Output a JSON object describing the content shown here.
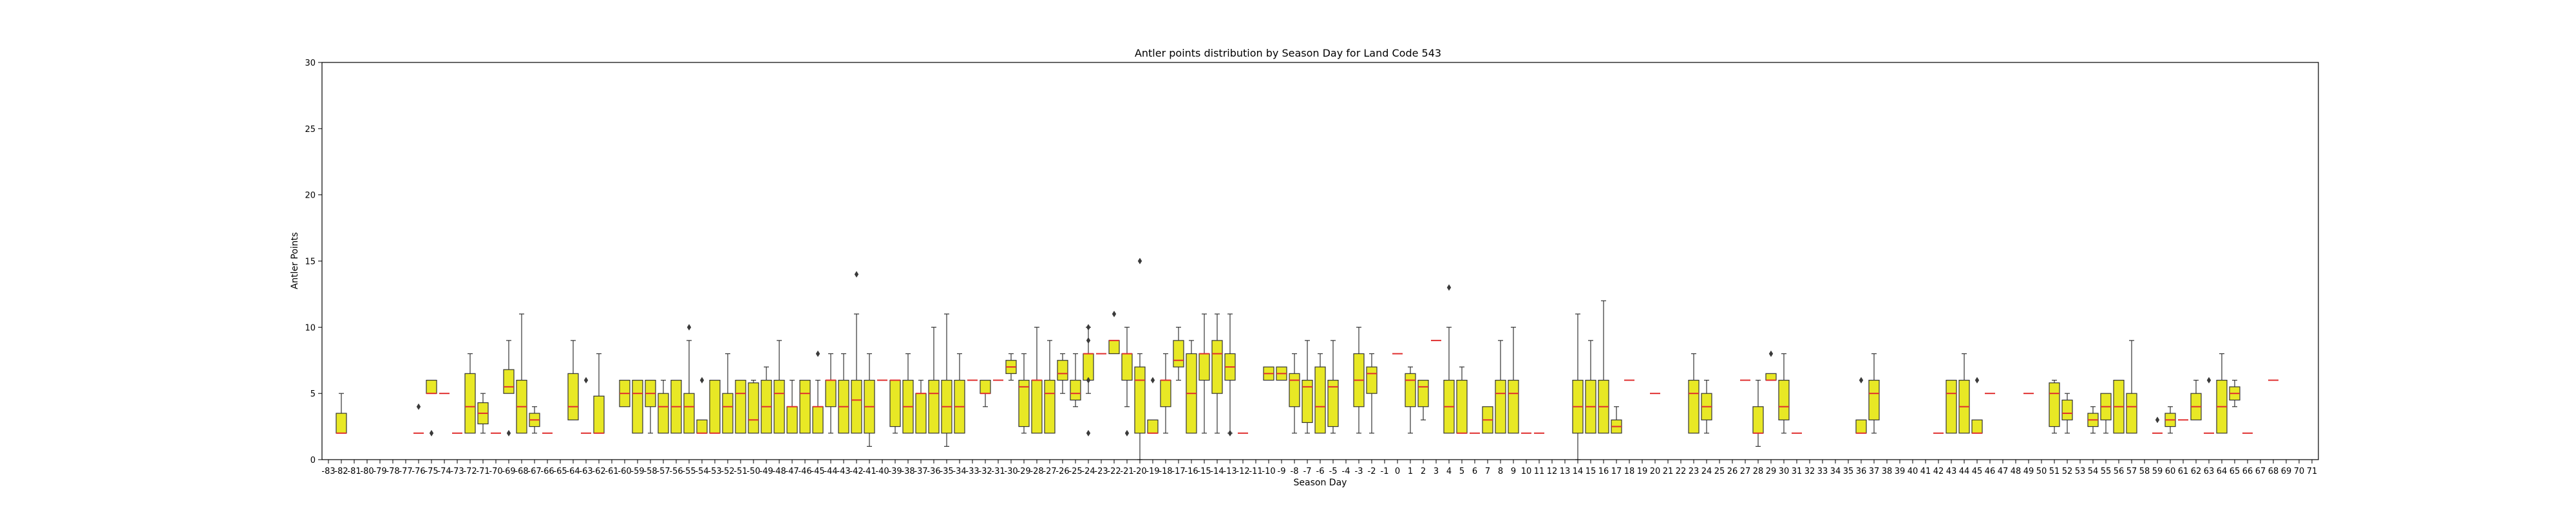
{
  "chart_data": {
    "type": "box",
    "title": "Antler points distribution by Season Day for Land Code 543",
    "xlabel": "Season Day",
    "ylabel": "Antler Points",
    "ylim": [
      0,
      30
    ],
    "yticks": [
      0,
      5,
      10,
      15,
      20,
      25,
      30
    ],
    "grid": false,
    "colors": {
      "box_fill": "#e8e825",
      "median": "#e03030",
      "edge": "#333333"
    },
    "categories": [
      -83,
      -82,
      -81,
      -80,
      -79,
      -78,
      -77,
      -76,
      -75,
      -74,
      -73,
      -72,
      -71,
      -70,
      -69,
      -68,
      -67,
      -66,
      -65,
      -64,
      -63,
      -62,
      -61,
      -60,
      -59,
      -58,
      -57,
      -56,
      -55,
      -54,
      -53,
      -52,
      -51,
      -50,
      -49,
      -48,
      -47,
      -46,
      -45,
      -44,
      -43,
      -42,
      -41,
      -40,
      -39,
      -38,
      -37,
      -36,
      -35,
      -34,
      -33,
      -32,
      -31,
      -30,
      -29,
      -28,
      -27,
      -26,
      -25,
      -24,
      -23,
      -22,
      -21,
      -20,
      -19,
      -18,
      -17,
      -16,
      -15,
      -14,
      -13,
      -12,
      -11,
      -10,
      -9,
      -8,
      -7,
      -6,
      -5,
      -4,
      -3,
      -2,
      -1,
      0,
      1,
      2,
      3,
      4,
      5,
      6,
      7,
      8,
      9,
      10,
      11,
      12,
      13,
      14,
      15,
      16,
      17,
      18,
      19,
      20,
      21,
      22,
      23,
      24,
      25,
      26,
      27,
      28,
      29,
      30,
      31,
      32,
      33,
      34,
      35,
      36,
      37,
      38,
      39,
      40,
      41,
      42,
      43,
      44,
      45,
      46,
      47,
      48,
      49,
      50,
      51,
      52,
      53,
      54,
      55,
      56,
      57,
      58,
      59,
      60,
      61,
      62,
      63,
      64,
      65,
      66,
      67,
      68,
      69,
      70,
      71
    ],
    "boxes": [
      {
        "x": -82,
        "lo": 2,
        "q1": 2,
        "med": 2,
        "q3": 3.5,
        "hi": 5,
        "fl": []
      },
      {
        "x": -76,
        "lo": 2,
        "q1": 2,
        "med": 2,
        "q3": 2,
        "hi": 2,
        "fl": [
          4
        ]
      },
      {
        "x": -75,
        "lo": 5,
        "q1": 5,
        "med": 5,
        "q3": 6,
        "hi": 6,
        "fl": [
          2
        ]
      },
      {
        "x": -74,
        "lo": 5,
        "q1": 5,
        "med": 5,
        "q3": 5,
        "hi": 5,
        "fl": []
      },
      {
        "x": -73,
        "lo": 2,
        "q1": 2,
        "med": 2,
        "q3": 2,
        "hi": 2,
        "fl": []
      },
      {
        "x": -72,
        "lo": 2,
        "q1": 2,
        "med": 4,
        "q3": 6.5,
        "hi": 8,
        "fl": []
      },
      {
        "x": -71,
        "lo": 2,
        "q1": 2.7,
        "med": 3.5,
        "q3": 4.3,
        "hi": 5,
        "fl": []
      },
      {
        "x": -70,
        "lo": 2,
        "q1": 2,
        "med": 2,
        "q3": 2,
        "hi": 2,
        "fl": []
      },
      {
        "x": -69,
        "lo": 5,
        "q1": 5,
        "med": 5.5,
        "q3": 6.8,
        "hi": 9,
        "fl": [
          2
        ]
      },
      {
        "x": -68,
        "lo": 2,
        "q1": 2,
        "med": 4,
        "q3": 6,
        "hi": 11,
        "fl": []
      },
      {
        "x": -67,
        "lo": 2,
        "q1": 2.5,
        "med": 3,
        "q3": 3.5,
        "hi": 4,
        "fl": []
      },
      {
        "x": -66,
        "lo": 2,
        "q1": 2,
        "med": 2,
        "q3": 2,
        "hi": 2,
        "fl": []
      },
      {
        "x": -64,
        "lo": 3,
        "q1": 3,
        "med": 4,
        "q3": 6.5,
        "hi": 9,
        "fl": []
      },
      {
        "x": -63,
        "lo": 2,
        "q1": 2,
        "med": 2,
        "q3": 2,
        "hi": 2,
        "fl": [
          6
        ]
      },
      {
        "x": -62,
        "lo": 2,
        "q1": 2,
        "med": 2,
        "q3": 4.8,
        "hi": 8,
        "fl": []
      },
      {
        "x": -60,
        "lo": 4,
        "q1": 4,
        "med": 5,
        "q3": 6,
        "hi": 6,
        "fl": []
      },
      {
        "x": -59,
        "lo": 2,
        "q1": 2,
        "med": 5,
        "q3": 6,
        "hi": 6,
        "fl": []
      },
      {
        "x": -58,
        "lo": 2,
        "q1": 4,
        "med": 5,
        "q3": 6,
        "hi": 6,
        "fl": []
      },
      {
        "x": -57,
        "lo": 2,
        "q1": 2,
        "med": 4,
        "q3": 5,
        "hi": 6,
        "fl": []
      },
      {
        "x": -56,
        "lo": 2,
        "q1": 2,
        "med": 4,
        "q3": 6,
        "hi": 6,
        "fl": []
      },
      {
        "x": -55,
        "lo": 2,
        "q1": 2,
        "med": 4,
        "q3": 5,
        "hi": 9,
        "fl": [
          10
        ]
      },
      {
        "x": -54,
        "lo": 2,
        "q1": 2,
        "med": 2,
        "q3": 3,
        "hi": 3,
        "fl": [
          6
        ]
      },
      {
        "x": -53,
        "lo": 2,
        "q1": 2,
        "med": 2,
        "q3": 6,
        "hi": 6,
        "fl": []
      },
      {
        "x": -52,
        "lo": 2,
        "q1": 2,
        "med": 4,
        "q3": 5,
        "hi": 8,
        "fl": []
      },
      {
        "x": -51,
        "lo": 2,
        "q1": 2,
        "med": 5,
        "q3": 6,
        "hi": 6,
        "fl": []
      },
      {
        "x": -50,
        "lo": 2,
        "q1": 2,
        "med": 3,
        "q3": 5.8,
        "hi": 6,
        "fl": []
      },
      {
        "x": -49,
        "lo": 2,
        "q1": 2,
        "med": 4,
        "q3": 6,
        "hi": 7,
        "fl": []
      },
      {
        "x": -48,
        "lo": 2,
        "q1": 2,
        "med": 5,
        "q3": 6,
        "hi": 9,
        "fl": []
      },
      {
        "x": -47,
        "lo": 2,
        "q1": 2,
        "med": 4,
        "q3": 4,
        "hi": 6,
        "fl": []
      },
      {
        "x": -46,
        "lo": 2,
        "q1": 2,
        "med": 5,
        "q3": 6,
        "hi": 6,
        "fl": []
      },
      {
        "x": -45,
        "lo": 2,
        "q1": 2,
        "med": 4,
        "q3": 4,
        "hi": 6,
        "fl": [
          8
        ]
      },
      {
        "x": -44,
        "lo": 2,
        "q1": 4,
        "med": 6,
        "q3": 6,
        "hi": 8,
        "fl": []
      },
      {
        "x": -43,
        "lo": 2,
        "q1": 2,
        "med": 4,
        "q3": 6,
        "hi": 8,
        "fl": []
      },
      {
        "x": -42,
        "lo": 2,
        "q1": 2,
        "med": 4.5,
        "q3": 6,
        "hi": 11,
        "fl": [
          14
        ]
      },
      {
        "x": -41,
        "lo": 1,
        "q1": 2,
        "med": 4,
        "q3": 6,
        "hi": 8,
        "fl": []
      },
      {
        "x": -40,
        "lo": 6,
        "q1": 6,
        "med": 6,
        "q3": 6,
        "hi": 6,
        "fl": []
      },
      {
        "x": -39,
        "lo": 2,
        "q1": 2.5,
        "med": 6,
        "q3": 6,
        "hi": 6,
        "fl": []
      },
      {
        "x": -38,
        "lo": 2,
        "q1": 2,
        "med": 4,
        "q3": 6,
        "hi": 8,
        "fl": []
      },
      {
        "x": -37,
        "lo": 2,
        "q1": 2,
        "med": 5,
        "q3": 5,
        "hi": 6,
        "fl": []
      },
      {
        "x": -36,
        "lo": 2,
        "q1": 2,
        "med": 5,
        "q3": 6,
        "hi": 10,
        "fl": []
      },
      {
        "x": -35,
        "lo": 1,
        "q1": 2,
        "med": 4,
        "q3": 6,
        "hi": 11,
        "fl": []
      },
      {
        "x": -34,
        "lo": 2,
        "q1": 2,
        "med": 4,
        "q3": 6,
        "hi": 8,
        "fl": []
      },
      {
        "x": -33,
        "lo": 6,
        "q1": 6,
        "med": 6,
        "q3": 6,
        "hi": 6,
        "fl": []
      },
      {
        "x": -32,
        "lo": 4,
        "q1": 5,
        "med": 5,
        "q3": 6,
        "hi": 6,
        "fl": []
      },
      {
        "x": -31,
        "lo": 6,
        "q1": 6,
        "med": 6,
        "q3": 6,
        "hi": 6,
        "fl": []
      },
      {
        "x": -30,
        "lo": 6,
        "q1": 6.5,
        "med": 7,
        "q3": 7.5,
        "hi": 8,
        "fl": []
      },
      {
        "x": -29,
        "lo": 2,
        "q1": 2.5,
        "med": 5.5,
        "q3": 6,
        "hi": 8,
        "fl": []
      },
      {
        "x": -28,
        "lo": 2,
        "q1": 2,
        "med": 6,
        "q3": 6,
        "hi": 10,
        "fl": []
      },
      {
        "x": -27,
        "lo": 2,
        "q1": 2,
        "med": 5,
        "q3": 6,
        "hi": 9,
        "fl": []
      },
      {
        "x": -26,
        "lo": 5,
        "q1": 6,
        "med": 6.5,
        "q3": 7.5,
        "hi": 8,
        "fl": []
      },
      {
        "x": -25,
        "lo": 4,
        "q1": 4.5,
        "med": 5,
        "q3": 6,
        "hi": 8,
        "fl": []
      },
      {
        "x": -24,
        "lo": 5,
        "q1": 6,
        "med": 8,
        "q3": 8,
        "hi": 10,
        "fl": [
          10,
          9,
          6,
          2
        ]
      },
      {
        "x": -23,
        "lo": 8,
        "q1": 8,
        "med": 8,
        "q3": 8,
        "hi": 8,
        "fl": []
      },
      {
        "x": -22,
        "lo": 8,
        "q1": 8,
        "med": 9,
        "q3": 9,
        "hi": 9,
        "fl": [
          11
        ]
      },
      {
        "x": -21,
        "lo": 4,
        "q1": 6,
        "med": 8,
        "q3": 8,
        "hi": 10,
        "fl": [
          2
        ]
      },
      {
        "x": -20,
        "lo": 0,
        "q1": 2,
        "med": 6,
        "q3": 7,
        "hi": 8,
        "fl": [
          15
        ]
      },
      {
        "x": -19,
        "lo": 2,
        "q1": 2,
        "med": 2,
        "q3": 3,
        "hi": 3,
        "fl": [
          6
        ]
      },
      {
        "x": -18,
        "lo": 2,
        "q1": 4,
        "med": 6,
        "q3": 6,
        "hi": 8,
        "fl": []
      },
      {
        "x": -17,
        "lo": 6,
        "q1": 7,
        "med": 7.5,
        "q3": 9,
        "hi": 10,
        "fl": []
      },
      {
        "x": -16,
        "lo": 2,
        "q1": 2,
        "med": 5,
        "q3": 8,
        "hi": 9,
        "fl": []
      },
      {
        "x": -15,
        "lo": 2,
        "q1": 6,
        "med": 8,
        "q3": 8,
        "hi": 11,
        "fl": []
      },
      {
        "x": -14,
        "lo": 2,
        "q1": 5,
        "med": 8,
        "q3": 9,
        "hi": 11,
        "fl": []
      },
      {
        "x": -13,
        "lo": 2,
        "q1": 6,
        "med": 7,
        "q3": 8,
        "hi": 11,
        "fl": [
          2
        ]
      },
      {
        "x": -12,
        "lo": 2,
        "q1": 2,
        "med": 2,
        "q3": 2,
        "hi": 2,
        "fl": []
      },
      {
        "x": -10,
        "lo": 6,
        "q1": 6,
        "med": 6.5,
        "q3": 7,
        "hi": 7,
        "fl": []
      },
      {
        "x": -9,
        "lo": 6,
        "q1": 6,
        "med": 6.5,
        "q3": 7,
        "hi": 7,
        "fl": []
      },
      {
        "x": -8,
        "lo": 2,
        "q1": 4,
        "med": 6,
        "q3": 6.5,
        "hi": 8,
        "fl": []
      },
      {
        "x": -7,
        "lo": 2,
        "q1": 2.8,
        "med": 5.5,
        "q3": 6,
        "hi": 9,
        "fl": []
      },
      {
        "x": -6,
        "lo": 2,
        "q1": 2,
        "med": 4,
        "q3": 7,
        "hi": 8,
        "fl": []
      },
      {
        "x": -5,
        "lo": 2,
        "q1": 2.5,
        "med": 5.5,
        "q3": 6,
        "hi": 9,
        "fl": []
      },
      {
        "x": -3,
        "lo": 2,
        "q1": 4,
        "med": 6,
        "q3": 8,
        "hi": 10,
        "fl": []
      },
      {
        "x": -2,
        "lo": 2,
        "q1": 5,
        "med": 6.5,
        "q3": 7,
        "hi": 8,
        "fl": []
      },
      {
        "x": 0,
        "lo": 8,
        "q1": 8,
        "med": 8,
        "q3": 8,
        "hi": 8,
        "fl": []
      },
      {
        "x": 1,
        "lo": 2,
        "q1": 4,
        "med": 6,
        "q3": 6.5,
        "hi": 7,
        "fl": []
      },
      {
        "x": 2,
        "lo": 3,
        "q1": 4,
        "med": 5.5,
        "q3": 6,
        "hi": 6,
        "fl": []
      },
      {
        "x": 3,
        "lo": 9,
        "q1": 9,
        "med": 9,
        "q3": 9,
        "hi": 9,
        "fl": []
      },
      {
        "x": 4,
        "lo": 2,
        "q1": 2,
        "med": 4,
        "q3": 6,
        "hi": 10,
        "fl": [
          13
        ]
      },
      {
        "x": 5,
        "lo": 2,
        "q1": 2,
        "med": 2,
        "q3": 6,
        "hi": 7,
        "fl": []
      },
      {
        "x": 6,
        "lo": 2,
        "q1": 2,
        "med": 2,
        "q3": 2,
        "hi": 2,
        "fl": []
      },
      {
        "x": 7,
        "lo": 2,
        "q1": 2,
        "med": 3,
        "q3": 4,
        "hi": 4,
        "fl": []
      },
      {
        "x": 8,
        "lo": 2,
        "q1": 2,
        "med": 5,
        "q3": 6,
        "hi": 9,
        "fl": []
      },
      {
        "x": 9,
        "lo": 2,
        "q1": 2,
        "med": 5,
        "q3": 6,
        "hi": 10,
        "fl": []
      },
      {
        "x": 10,
        "lo": 2,
        "q1": 2,
        "med": 2,
        "q3": 2,
        "hi": 2,
        "fl": []
      },
      {
        "x": 11,
        "lo": 2,
        "q1": 2,
        "med": 2,
        "q3": 2,
        "hi": 2,
        "fl": []
      },
      {
        "x": 14,
        "lo": 0,
        "q1": 2,
        "med": 4,
        "q3": 6,
        "hi": 11,
        "fl": []
      },
      {
        "x": 15,
        "lo": 2,
        "q1": 2,
        "med": 4,
        "q3": 6,
        "hi": 9,
        "fl": []
      },
      {
        "x": 16,
        "lo": 2,
        "q1": 2,
        "med": 4,
        "q3": 6,
        "hi": 12,
        "fl": []
      },
      {
        "x": 17,
        "lo": 2,
        "q1": 2,
        "med": 2.5,
        "q3": 3,
        "hi": 4,
        "fl": []
      },
      {
        "x": 18,
        "lo": 6,
        "q1": 6,
        "med": 6,
        "q3": 6,
        "hi": 6,
        "fl": []
      },
      {
        "x": 20,
        "lo": 5,
        "q1": 5,
        "med": 5,
        "q3": 5,
        "hi": 5,
        "fl": []
      },
      {
        "x": 23,
        "lo": 2,
        "q1": 2,
        "med": 5,
        "q3": 6,
        "hi": 8,
        "fl": []
      },
      {
        "x": 24,
        "lo": 2,
        "q1": 3,
        "med": 4,
        "q3": 5,
        "hi": 6,
        "fl": []
      },
      {
        "x": 27,
        "lo": 6,
        "q1": 6,
        "med": 6,
        "q3": 6,
        "hi": 6,
        "fl": []
      },
      {
        "x": 28,
        "lo": 1,
        "q1": 2,
        "med": 2,
        "q3": 4,
        "hi": 6,
        "fl": []
      },
      {
        "x": 29,
        "lo": 6,
        "q1": 6,
        "med": 6,
        "q3": 6.5,
        "hi": 6.5,
        "fl": [
          8
        ]
      },
      {
        "x": 30,
        "lo": 2,
        "q1": 3,
        "med": 4,
        "q3": 6,
        "hi": 8,
        "fl": []
      },
      {
        "x": 31,
        "lo": 2,
        "q1": 2,
        "med": 2,
        "q3": 2,
        "hi": 2,
        "fl": []
      },
      {
        "x": 36,
        "lo": 2,
        "q1": 2,
        "med": 2,
        "q3": 3,
        "hi": 3,
        "fl": [
          6
        ]
      },
      {
        "x": 37,
        "lo": 2,
        "q1": 3,
        "med": 5,
        "q3": 6,
        "hi": 8,
        "fl": []
      },
      {
        "x": 42,
        "lo": 2,
        "q1": 2,
        "med": 2,
        "q3": 2,
        "hi": 2,
        "fl": []
      },
      {
        "x": 43,
        "lo": 2,
        "q1": 2,
        "med": 5,
        "q3": 6,
        "hi": 6,
        "fl": []
      },
      {
        "x": 44,
        "lo": 2,
        "q1": 2,
        "med": 4,
        "q3": 6,
        "hi": 8,
        "fl": []
      },
      {
        "x": 45,
        "lo": 2,
        "q1": 2,
        "med": 2,
        "q3": 3,
        "hi": 3,
        "fl": [
          6
        ]
      },
      {
        "x": 46,
        "lo": 5,
        "q1": 5,
        "med": 5,
        "q3": 5,
        "hi": 5,
        "fl": []
      },
      {
        "x": 49,
        "lo": 5,
        "q1": 5,
        "med": 5,
        "q3": 5,
        "hi": 5,
        "fl": []
      },
      {
        "x": 51,
        "lo": 2,
        "q1": 2.5,
        "med": 5,
        "q3": 5.8,
        "hi": 6,
        "fl": []
      },
      {
        "x": 52,
        "lo": 2,
        "q1": 3,
        "med": 3.5,
        "q3": 4.5,
        "hi": 5,
        "fl": []
      },
      {
        "x": 54,
        "lo": 2,
        "q1": 2.5,
        "med": 3,
        "q3": 3.5,
        "hi": 4,
        "fl": []
      },
      {
        "x": 55,
        "lo": 2,
        "q1": 3,
        "med": 4,
        "q3": 5,
        "hi": 5,
        "fl": []
      },
      {
        "x": 56,
        "lo": 2,
        "q1": 2,
        "med": 4,
        "q3": 6,
        "hi": 6,
        "fl": []
      },
      {
        "x": 57,
        "lo": 2,
        "q1": 2,
        "med": 4,
        "q3": 5,
        "hi": 9,
        "fl": []
      },
      {
        "x": 59,
        "lo": 2,
        "q1": 2,
        "med": 2,
        "q3": 2,
        "hi": 2,
        "fl": [
          3
        ]
      },
      {
        "x": 60,
        "lo": 2,
        "q1": 2.5,
        "med": 3,
        "q3": 3.5,
        "hi": 4,
        "fl": []
      },
      {
        "x": 61,
        "lo": 3,
        "q1": 3,
        "med": 3,
        "q3": 3,
        "hi": 3,
        "fl": []
      },
      {
        "x": 62,
        "lo": 3,
        "q1": 3,
        "med": 4,
        "q3": 5,
        "hi": 6,
        "fl": []
      },
      {
        "x": 63,
        "lo": 2,
        "q1": 2,
        "med": 2,
        "q3": 2,
        "hi": 2,
        "fl": [
          6
        ]
      },
      {
        "x": 64,
        "lo": 2,
        "q1": 2,
        "med": 4,
        "q3": 6,
        "hi": 8,
        "fl": []
      },
      {
        "x": 65,
        "lo": 4,
        "q1": 4.5,
        "med": 5,
        "q3": 5.5,
        "hi": 6,
        "fl": []
      },
      {
        "x": 66,
        "lo": 2,
        "q1": 2,
        "med": 2,
        "q3": 2,
        "hi": 2,
        "fl": []
      },
      {
        "x": 68,
        "lo": 6,
        "q1": 6,
        "med": 6,
        "q3": 6,
        "hi": 6,
        "fl": []
      }
    ]
  }
}
